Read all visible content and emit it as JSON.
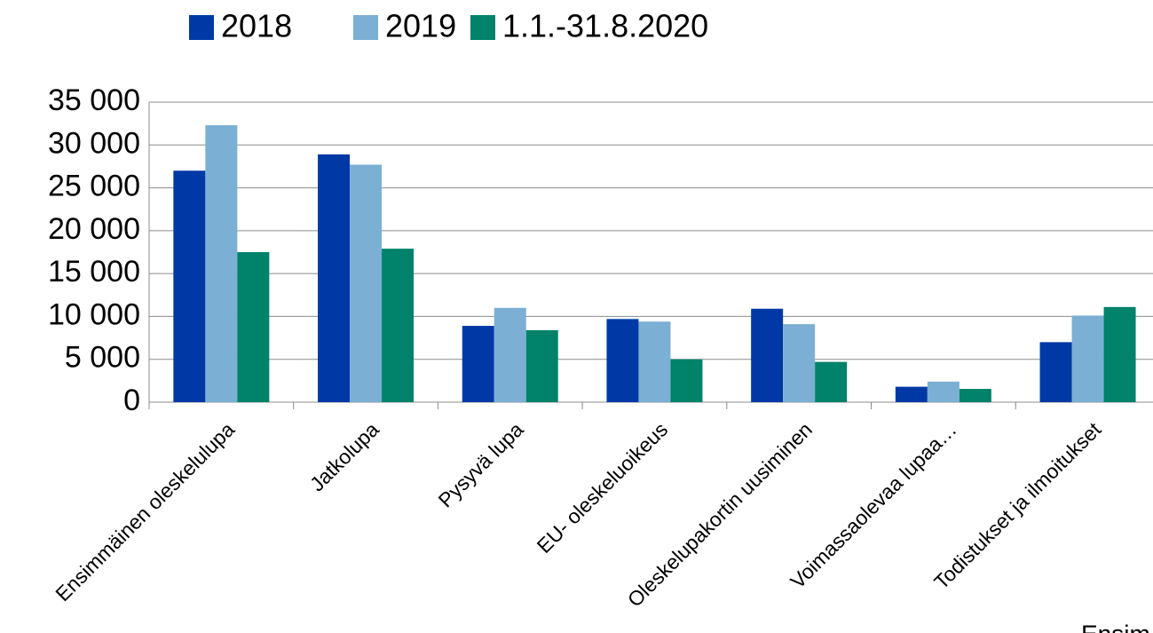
{
  "chart_data": {
    "type": "bar",
    "categories": [
      "Ensimmäinen oleskelulupa",
      "Jatkolupa",
      "Pysyvä lupa",
      "EU- oleskeluoikeus",
      "Oleskelupakortin uusiminen",
      "Voimassaolevaa lupaa…",
      "Todistukset ja ilmoitukset"
    ],
    "series": [
      {
        "name": "2018",
        "color": "#0039a6",
        "values": [
          27000,
          28900,
          8900,
          9700,
          10900,
          1800,
          7000
        ]
      },
      {
        "name": "2019",
        "color": "#7bafd4",
        "values": [
          32300,
          27700,
          11000,
          9400,
          9100,
          2400,
          10100
        ]
      },
      {
        "name": "1.1.-31.8.2020",
        "color": "#00826b",
        "values": [
          17500,
          17900,
          8400,
          5000,
          4700,
          1550,
          11100
        ]
      }
    ],
    "ylim": [
      0,
      35000
    ],
    "yticks": [
      0,
      {
        "value": 5000,
        "label": "5 000"
      },
      {
        "value": 10000,
        "label": "10 000"
      },
      {
        "value": 15000,
        "label": "15 000"
      },
      {
        "value": 20000,
        "label": "20 000"
      },
      {
        "value": 25000,
        "label": "25 000"
      },
      {
        "value": 30000,
        "label": "30 000"
      },
      {
        "value": 35000,
        "label": "35 000"
      }
    ],
    "grid": true,
    "legend": "top",
    "footer_text": "Ensim"
  }
}
